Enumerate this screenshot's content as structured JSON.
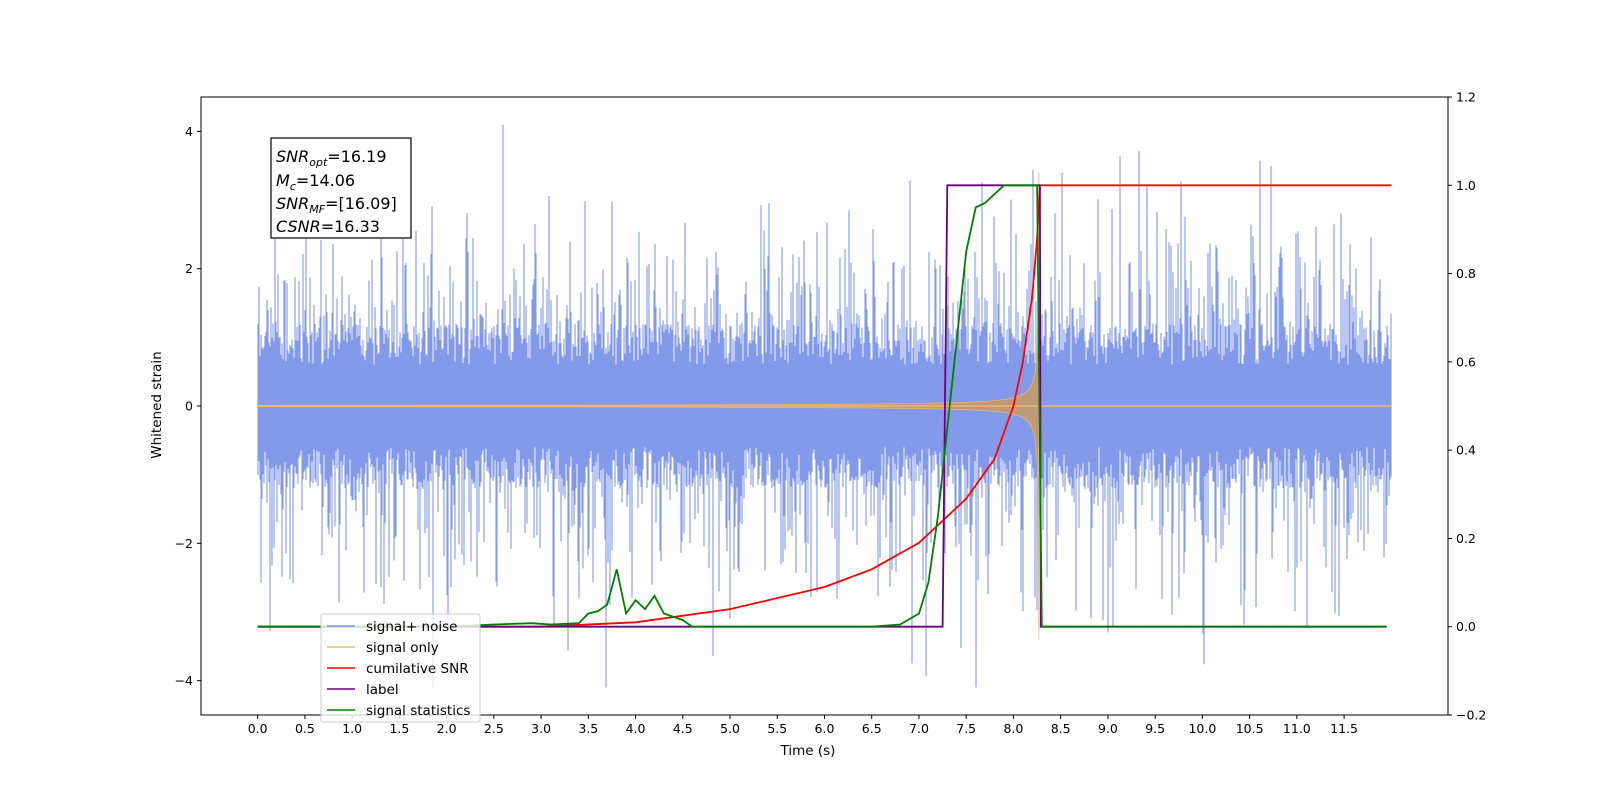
{
  "chart_data": {
    "type": "line",
    "title": "",
    "xlabel": "Time (s)",
    "ylabel": "Whitened strain",
    "y2label": "",
    "xlim": [
      -0.6,
      12.6
    ],
    "ylim": [
      -4.5,
      4.5
    ],
    "y2lim": [
      -0.2,
      1.2
    ],
    "x_ticks": [
      "0.0",
      "0.5",
      "1.0",
      "1.5",
      "2.0",
      "2.5",
      "3.0",
      "3.5",
      "4.0",
      "4.5",
      "5.0",
      "5.5",
      "6.0",
      "6.5",
      "7.0",
      "7.5",
      "8.0",
      "8.5",
      "9.0",
      "9.5",
      "10.0",
      "10.5",
      "11.0",
      "11.5"
    ],
    "y_ticks": [
      "−4",
      "−2",
      "0",
      "2",
      "4"
    ],
    "y2_ticks": [
      "−0.2",
      "0.0",
      "0.2",
      "0.4",
      "0.6",
      "0.8",
      "1.0",
      "1.2"
    ],
    "grid": false,
    "legend_position": "lower-left",
    "annotation": {
      "line1_main": "SNR",
      "line1_sub": "opt",
      "line1_val": "=16.19",
      "line2_main": "M",
      "line2_sub": "c",
      "line2_val": "=14.06",
      "line3_main": "SNR",
      "line3_sub": "MF",
      "line3_val": "=[16.09]",
      "line4_main": "CSNR",
      "line4_val": "=16.33"
    },
    "series": [
      {
        "name": "signal+ noise",
        "color": "#7b95e8",
        "axis": "left",
        "description_values": {
          "x_start": 0.0,
          "x_end": 12.0,
          "amplitude_range": [
            -4.1,
            4.1
          ]
        }
      },
      {
        "name": "signal only",
        "color": "#f0b870",
        "axis": "left",
        "chirp": {
          "x_start": 0.0,
          "merger_x": 8.27,
          "peak_amplitude": 3.4
        }
      },
      {
        "name": "cumilative SNR",
        "color": "#ff0000",
        "axis": "right",
        "points": [
          [
            0.0,
            0.0
          ],
          [
            3.0,
            0.0
          ],
          [
            4.0,
            0.01
          ],
          [
            5.0,
            0.04
          ],
          [
            6.0,
            0.09
          ],
          [
            6.5,
            0.13
          ],
          [
            7.0,
            0.19
          ],
          [
            7.5,
            0.29
          ],
          [
            7.8,
            0.38
          ],
          [
            8.0,
            0.5
          ],
          [
            8.1,
            0.6
          ],
          [
            8.2,
            0.75
          ],
          [
            8.25,
            0.88
          ],
          [
            8.28,
            1.0
          ],
          [
            12.0,
            1.0
          ]
        ]
      },
      {
        "name": "label",
        "color": "#6a0080",
        "axis": "right",
        "points": [
          [
            0.0,
            0.0
          ],
          [
            7.25,
            0.0
          ],
          [
            7.3,
            1.0
          ],
          [
            8.28,
            1.0
          ],
          [
            8.29,
            0.0
          ],
          [
            11.95,
            0.0
          ]
        ]
      },
      {
        "name": "signal statistics",
        "color": "#008000",
        "axis": "right",
        "points": [
          [
            0.0,
            0.0
          ],
          [
            2.0,
            0.0
          ],
          [
            2.5,
            0.005
          ],
          [
            2.9,
            0.008
          ],
          [
            3.1,
            0.005
          ],
          [
            3.4,
            0.008
          ],
          [
            3.5,
            0.03
          ],
          [
            3.6,
            0.035
          ],
          [
            3.7,
            0.05
          ],
          [
            3.8,
            0.13
          ],
          [
            3.9,
            0.03
          ],
          [
            4.0,
            0.06
          ],
          [
            4.1,
            0.04
          ],
          [
            4.2,
            0.07
          ],
          [
            4.3,
            0.03
          ],
          [
            4.5,
            0.015
          ],
          [
            4.6,
            0.0
          ],
          [
            6.5,
            0.0
          ],
          [
            6.8,
            0.005
          ],
          [
            7.0,
            0.03
          ],
          [
            7.1,
            0.1
          ],
          [
            7.2,
            0.25
          ],
          [
            7.3,
            0.45
          ],
          [
            7.4,
            0.65
          ],
          [
            7.5,
            0.85
          ],
          [
            7.6,
            0.95
          ],
          [
            7.7,
            0.96
          ],
          [
            7.8,
            0.98
          ],
          [
            7.9,
            1.0
          ],
          [
            8.25,
            1.0
          ],
          [
            8.3,
            0.0
          ],
          [
            11.95,
            0.0
          ]
        ]
      }
    ]
  },
  "legend": {
    "items": [
      "signal+ noise",
      "signal only",
      "cumilative SNR",
      "label",
      "signal statistics"
    ]
  }
}
